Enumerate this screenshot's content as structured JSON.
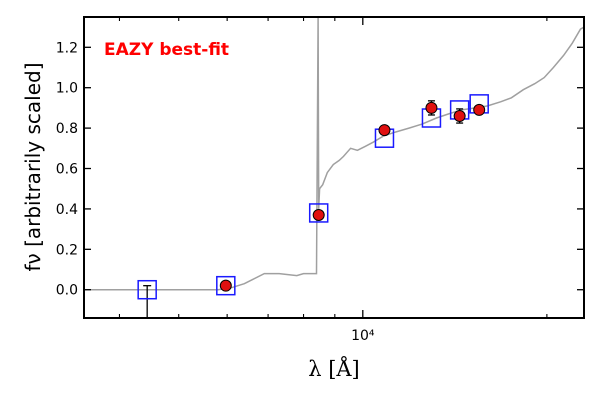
{
  "chart_data": {
    "type": "scatter",
    "annotation": "EAZY best-fit",
    "xlabel": "λ [Å]",
    "ylabel": "fν [arbitrarily scaled]",
    "x_scale": "log",
    "xlim": [
      3500,
      23000
    ],
    "ylim": [
      -0.14,
      1.35
    ],
    "y_ticks": [
      "0.0",
      "0.2",
      "0.4",
      "0.6",
      "0.8",
      "1.0",
      "1.2"
    ],
    "x_tick_label": "10⁴",
    "grid": false,
    "colors": {
      "template": "#a0a0a0",
      "model_box": "#1a1aff",
      "observed": "#e01010",
      "annotation": "#ff0000"
    },
    "template_sed": {
      "x": [
        3500,
        4700,
        5300,
        5800,
        6100,
        6400,
        6600,
        6900,
        7300,
        7800,
        8000,
        8300,
        8400,
        8450,
        8470,
        8500,
        8600,
        8750,
        8950,
        9150,
        9300,
        9550,
        9800,
        10100,
        10400,
        10800,
        11300,
        11900,
        12500,
        13200,
        13800,
        14500,
        15300,
        16000,
        16800,
        17500,
        18300,
        19100,
        19800,
        20500,
        21300,
        22000,
        22700,
        23000
      ],
      "y": [
        0.0,
        0.0,
        0.0,
        0.0,
        0.01,
        0.03,
        0.05,
        0.08,
        0.08,
        0.07,
        0.08,
        0.08,
        0.08,
        1.35,
        0.4,
        0.5,
        0.52,
        0.58,
        0.62,
        0.64,
        0.66,
        0.7,
        0.69,
        0.71,
        0.73,
        0.76,
        0.78,
        0.8,
        0.82,
        0.85,
        0.87,
        0.89,
        0.9,
        0.91,
        0.93,
        0.95,
        0.99,
        1.02,
        1.05,
        1.1,
        1.16,
        1.22,
        1.29,
        1.3
      ]
    },
    "model_photometry": {
      "x": [
        4440,
        5970,
        8470,
        10850,
        12950,
        14400,
        15500
      ],
      "y": [
        0.0,
        0.02,
        0.38,
        0.75,
        0.85,
        0.89,
        0.92
      ]
    },
    "observed_photometry": {
      "x": [
        5970,
        8470,
        10850,
        12950,
        14400,
        15500
      ],
      "y": [
        0.02,
        0.37,
        0.79,
        0.9,
        0.86,
        0.89
      ],
      "yerr": [
        0.01,
        0.015,
        0.02,
        0.035,
        0.035,
        0.02
      ]
    },
    "upper_limit_x": 4440
  }
}
